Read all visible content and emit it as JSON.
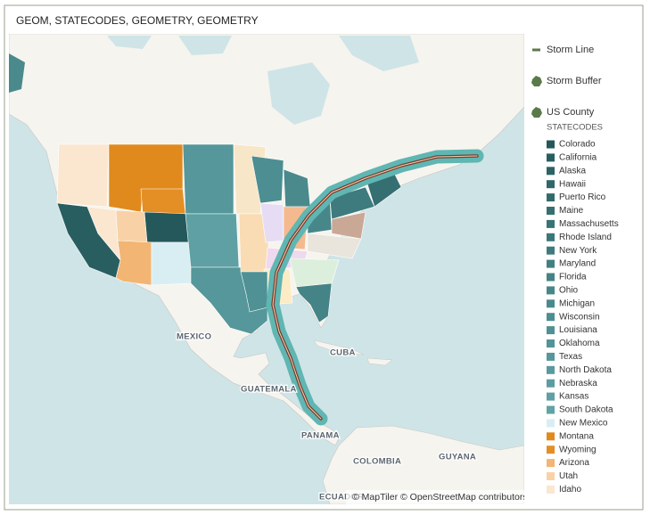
{
  "header": {
    "title": "GEOM, STATECODES, GEOMETRY, GEOMETRY"
  },
  "map": {
    "labels": [
      "MEXICO",
      "CUBA",
      "GUATEMALA",
      "PANAMA",
      "COLOMBIA",
      "GUYANA",
      "ECUADOR"
    ],
    "attribution": "© MapTiler © OpenStreetMap contributors"
  },
  "legend": {
    "layers": [
      {
        "label": "Storm Line",
        "color": "#5b7a4a"
      },
      {
        "label": "Storm Buffer",
        "color": "#5b7a4a"
      },
      {
        "label": "US County",
        "color": "#5b7a4a"
      }
    ],
    "group_title": "STATECODES",
    "items": [
      {
        "label": "Colorado",
        "color": "#24585b"
      },
      {
        "label": "California",
        "color": "#295e61"
      },
      {
        "label": "Alaska",
        "color": "#2c6366"
      },
      {
        "label": "Hawaii",
        "color": "#2f676a"
      },
      {
        "label": "Puerto Rico",
        "color": "#326b6e"
      },
      {
        "label": "Maine",
        "color": "#356f72"
      },
      {
        "label": "Massachusetts",
        "color": "#387376"
      },
      {
        "label": "Rhode Island",
        "color": "#3b777a"
      },
      {
        "label": "New York",
        "color": "#3e7b7e"
      },
      {
        "label": "Maryland",
        "color": "#417f82"
      },
      {
        "label": "Florida",
        "color": "#448386"
      },
      {
        "label": "Ohio",
        "color": "#47878a"
      },
      {
        "label": "Michigan",
        "color": "#4a8a8d"
      },
      {
        "label": "Wisconsin",
        "color": "#4c8e91"
      },
      {
        "label": "Louisiana",
        "color": "#4f9194"
      },
      {
        "label": "Oklahoma",
        "color": "#529497"
      },
      {
        "label": "Texas",
        "color": "#55979a"
      },
      {
        "label": "North Dakota",
        "color": "#589a9d"
      },
      {
        "label": "Nebraska",
        "color": "#5b9da0"
      },
      {
        "label": "Kansas",
        "color": "#5ea0a3"
      },
      {
        "label": "South Dakota",
        "color": "#61a3a6"
      },
      {
        "label": "New Mexico",
        "color": "#d8eef2"
      },
      {
        "label": "Montana",
        "color": "#e08a1e"
      },
      {
        "label": "Wyoming",
        "color": "#e48f25"
      },
      {
        "label": "Arizona",
        "color": "#f2b574"
      },
      {
        "label": "Utah",
        "color": "#f8d2a6"
      },
      {
        "label": "Idaho",
        "color": "#fbe6cf"
      }
    ]
  }
}
